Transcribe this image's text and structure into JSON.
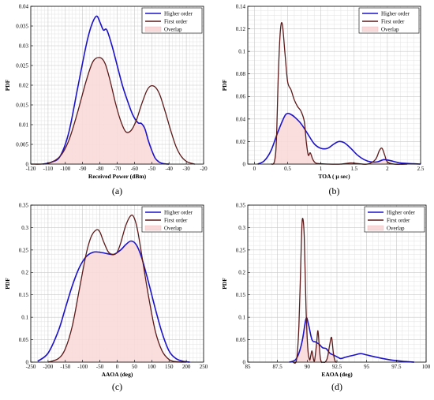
{
  "colors": {
    "higher": "#1c12c8",
    "first": "#5c1a1a",
    "overlap_fill": "#f9dada",
    "grid_minor": "#e3e3e3",
    "grid_major": "#c8c8c8"
  },
  "chart_data": [
    {
      "id": "a",
      "type": "area",
      "caption": "(a)",
      "xlabel": "Received Power (dBm)",
      "ylabel": "PDF",
      "xlim": [
        -120,
        -20
      ],
      "ylim": [
        0,
        0.04
      ],
      "xticks": [
        "-120",
        "-110",
        "-100",
        "-90",
        "-80",
        "-70",
        "-60",
        "-50",
        "-40",
        "-30",
        "-20"
      ],
      "yticks": [
        "0",
        "0.005",
        "0.01",
        "0.015",
        "0.02",
        "0.025",
        "0.03",
        "0.035",
        "0.04"
      ],
      "grid": true,
      "legend_position": "top-right",
      "legend": [
        "Higher order",
        "First order",
        "Overlap"
      ],
      "series": [
        {
          "name": "Higher order",
          "x": [
            -113,
            -108,
            -103,
            -98,
            -93,
            -88,
            -85,
            -82,
            -80,
            -78,
            -76,
            -73,
            -70,
            -67,
            -64,
            -61,
            -58,
            -56,
            -54,
            -52,
            -50,
            -48,
            -46,
            -44,
            -42,
            -40
          ],
          "y": [
            0,
            0.0005,
            0.002,
            0.008,
            0.019,
            0.03,
            0.035,
            0.0375,
            0.036,
            0.034,
            0.034,
            0.03,
            0.025,
            0.02,
            0.016,
            0.0125,
            0.0105,
            0.0103,
            0.009,
            0.006,
            0.0035,
            0.0015,
            0.0006,
            0.0002,
            5e-05,
            0
          ]
        },
        {
          "name": "First order",
          "x": [
            -120,
            -110,
            -103,
            -98,
            -93,
            -88,
            -84,
            -80,
            -77,
            -74,
            -71,
            -68,
            -65,
            -62,
            -59,
            -56,
            -53,
            -51,
            -49,
            -47,
            -45,
            -42,
            -39,
            -36,
            -33,
            -30,
            -27,
            -25
          ],
          "y": [
            0,
            0.0002,
            0.002,
            0.006,
            0.013,
            0.021,
            0.026,
            0.027,
            0.0255,
            0.021,
            0.0155,
            0.011,
            0.0082,
            0.0085,
            0.011,
            0.015,
            0.0185,
            0.0197,
            0.0198,
            0.019,
            0.0172,
            0.013,
            0.0085,
            0.0045,
            0.002,
            0.0007,
            0.0002,
            0
          ]
        }
      ],
      "legend_y_frac": 0.9
    },
    {
      "id": "b",
      "type": "area",
      "caption": "(b)",
      "xlabel": "TOA ( μ sec)",
      "ylabel": "PDF",
      "xlim": [
        -0.1,
        2.5
      ],
      "ylim": [
        0,
        0.14
      ],
      "xticks": [
        "0",
        "0.5",
        "1",
        "1.5",
        "2",
        "2.5"
      ],
      "xtick_values": [
        0,
        0.5,
        1,
        1.5,
        2,
        2.5
      ],
      "yticks": [
        "0",
        "0.02",
        "0.04",
        "0.06",
        "0.08",
        "0.1",
        "0.12",
        "0.14"
      ],
      "grid": true,
      "legend_position": "top-right",
      "legend": [
        "Higher order",
        "First order",
        "Overlap"
      ],
      "series": [
        {
          "name": "Higher order",
          "x": [
            0.05,
            0.15,
            0.25,
            0.35,
            0.45,
            0.5,
            0.55,
            0.6,
            0.7,
            0.8,
            0.9,
            1.0,
            1.1,
            1.2,
            1.27,
            1.35,
            1.45,
            1.55,
            1.65,
            1.75,
            1.85,
            1.95,
            2.05,
            2.2,
            2.4,
            2.5
          ],
          "y": [
            0,
            0.003,
            0.012,
            0.028,
            0.042,
            0.045,
            0.044,
            0.042,
            0.036,
            0.027,
            0.018,
            0.014,
            0.014,
            0.018,
            0.02,
            0.019,
            0.014,
            0.008,
            0.004,
            0.002,
            0.002,
            0.004,
            0.003,
            0.001,
            0.0003,
            0
          ]
        },
        {
          "name": "First order",
          "x": [
            0.25,
            0.3,
            0.33,
            0.36,
            0.39,
            0.42,
            0.46,
            0.5,
            0.55,
            0.6,
            0.65,
            0.7,
            0.75,
            0.78,
            0.81,
            0.84,
            0.88,
            0.92,
            1.0,
            1.1,
            1.3,
            1.45,
            1.55,
            1.7,
            1.82,
            1.88,
            1.92,
            1.96,
            2.0,
            2.1,
            2.3
          ],
          "y": [
            0,
            0.002,
            0.02,
            0.08,
            0.118,
            0.124,
            0.098,
            0.073,
            0.066,
            0.057,
            0.051,
            0.047,
            0.038,
            0.02,
            0.008,
            0.01,
            0.004,
            0.001,
            0.0003,
            0,
            0,
            0.001,
            0.0005,
            0,
            0.004,
            0.012,
            0.014,
            0.008,
            0.002,
            0,
            0
          ]
        }
      ],
      "legend_y_frac": 0.9
    },
    {
      "id": "c",
      "type": "area",
      "caption": "(c)",
      "xlabel": "AAOA (deg)",
      "ylabel": "PDF",
      "xlim": [
        -250,
        250
      ],
      "ylim": [
        0,
        0.35
      ],
      "xticks": [
        "-250",
        "-200",
        "-150",
        "-100",
        "-50",
        "0",
        "50",
        "100",
        "150",
        "200",
        "250"
      ],
      "yticks": [
        "0",
        "0.05",
        "0.1",
        "0.15",
        "0.2",
        "0.25",
        "0.3",
        "0.35"
      ],
      "grid": true,
      "legend_position": "top-right",
      "legend": [
        "Higher order",
        "First order",
        "Overlap"
      ],
      "series": [
        {
          "name": "Higher order",
          "x": [
            -230,
            -200,
            -170,
            -150,
            -130,
            -110,
            -90,
            -70,
            -50,
            -30,
            -10,
            10,
            25,
            40,
            55,
            70,
            90,
            110,
            130,
            150,
            170,
            190,
            210
          ],
          "y": [
            0.002,
            0.02,
            0.07,
            0.12,
            0.17,
            0.21,
            0.235,
            0.245,
            0.245,
            0.242,
            0.24,
            0.25,
            0.262,
            0.27,
            0.262,
            0.235,
            0.18,
            0.12,
            0.065,
            0.025,
            0.008,
            0.002,
            0
          ]
        },
        {
          "name": "First order",
          "x": [
            -200,
            -170,
            -150,
            -130,
            -110,
            -90,
            -75,
            -60,
            -50,
            -40,
            -25,
            -10,
            0,
            10,
            25,
            40,
            50,
            60,
            75,
            90,
            110,
            130,
            150,
            170,
            200
          ],
          "y": [
            0,
            0.008,
            0.03,
            0.08,
            0.16,
            0.24,
            0.28,
            0.295,
            0.29,
            0.27,
            0.245,
            0.24,
            0.245,
            0.265,
            0.305,
            0.327,
            0.32,
            0.29,
            0.22,
            0.15,
            0.07,
            0.025,
            0.006,
            0.001,
            0
          ]
        }
      ],
      "legend_y_frac": 0.9
    },
    {
      "id": "d",
      "type": "area",
      "caption": "(d)",
      "xlabel": "EAOA (deg)",
      "ylabel": "PDF",
      "xlim": [
        85,
        100
      ],
      "ylim": [
        0,
        0.35
      ],
      "xticks": [
        "85",
        "87.5",
        "90",
        "92.5",
        "95",
        "97.5",
        "100"
      ],
      "xtick_values": [
        85,
        87.5,
        90,
        92.5,
        95,
        97.5,
        100
      ],
      "yticks": [
        "0",
        "0.05",
        "0.1",
        "0.15",
        "0.2",
        "0.25",
        "0.3",
        "0.35"
      ],
      "grid": true,
      "legend_position": "top-right",
      "legend": [
        "Higher order",
        "First order",
        "Overlap"
      ],
      "series": [
        {
          "name": "Higher order",
          "x": [
            88.5,
            89.0,
            89.3,
            89.6,
            89.9,
            90.1,
            90.4,
            90.7,
            91.0,
            91.3,
            91.6,
            91.9,
            92.2,
            92.5,
            92.8,
            93.1,
            93.5,
            94.0,
            94.5,
            95.0,
            96.0,
            97.0,
            98.0,
            99.0
          ],
          "y": [
            0,
            0.005,
            0.02,
            0.05,
            0.097,
            0.085,
            0.05,
            0.045,
            0.04,
            0.032,
            0.03,
            0.02,
            0.016,
            0.012,
            0.008,
            0.01,
            0.013,
            0.016,
            0.019,
            0.016,
            0.01,
            0.005,
            0.002,
            0
          ]
        },
        {
          "name": "First order",
          "x": [
            88.8,
            89.1,
            89.3,
            89.5,
            89.6,
            89.75,
            89.9,
            90.05,
            90.2,
            90.3,
            90.4,
            90.5,
            90.6,
            90.7,
            90.8,
            90.9,
            91.0,
            91.1,
            91.2,
            91.3,
            91.5,
            91.7,
            91.9,
            92.05,
            92.2,
            92.35,
            92.5
          ],
          "y": [
            0,
            0.005,
            0.08,
            0.26,
            0.32,
            0.28,
            0.12,
            0.03,
            0.005,
            0.015,
            0.025,
            0.01,
            0.002,
            0.02,
            0.045,
            0.07,
            0.04,
            0.01,
            0,
            0,
            0,
            0.01,
            0.04,
            0.055,
            0.02,
            0.002,
            0
          ]
        }
      ],
      "legend_y_frac": 0.9
    }
  ]
}
